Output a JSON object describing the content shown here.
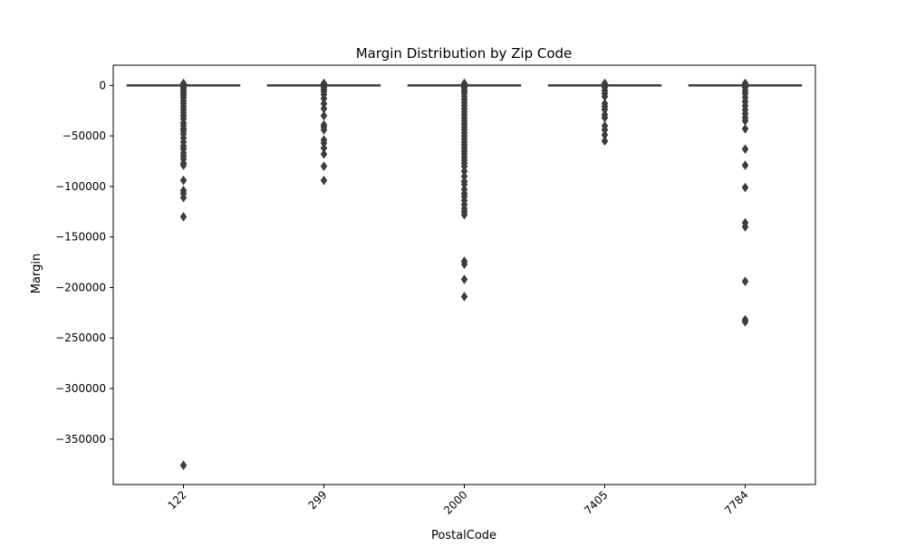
{
  "chart_data": {
    "type": "box",
    "title": "Margin Distribution by Zip Code",
    "xlabel": "PostalCode",
    "ylabel": "Margin",
    "categories": [
      "122",
      "299",
      "2000",
      "7405",
      "7784"
    ],
    "ylim": [
      -395000,
      20000
    ],
    "yticks": [
      0,
      -50000,
      -100000,
      -150000,
      -200000,
      -250000,
      -300000,
      -350000
    ],
    "ytick_labels": [
      "0",
      "−50000",
      "−100000",
      "−150000",
      "−200000",
      "−250000",
      "−300000",
      "−350000"
    ],
    "box_color": "#3d3d3d",
    "boxes": [
      {
        "category": "122",
        "q1": 0,
        "median": 0,
        "q3": 0,
        "whisker_low": 0,
        "whisker_high": 0,
        "outliers": [
          2000,
          1000,
          -2000,
          -4000,
          -6000,
          -8000,
          -10000,
          -12000,
          -15000,
          -18000,
          -21000,
          -24000,
          -27000,
          -30000,
          -33000,
          -37000,
          -40000,
          -43000,
          -45000,
          -48000,
          -52000,
          -56000,
          -60000,
          -63000,
          -67000,
          -70000,
          -73000,
          -77000,
          -79000,
          -94000,
          -104000,
          -107000,
          -111000,
          -130000,
          -376000
        ]
      },
      {
        "category": "299",
        "q1": 0,
        "median": 0,
        "q3": 0,
        "whisker_low": 0,
        "whisker_high": 0,
        "outliers": [
          2000,
          1000,
          -2000,
          -4000,
          -6000,
          -9000,
          -13000,
          -18000,
          -23000,
          -30000,
          -39000,
          -41000,
          -44000,
          -54000,
          -57000,
          -62000,
          -68000,
          -80000,
          -94000
        ]
      },
      {
        "category": "2000",
        "q1": 0,
        "median": 0,
        "q3": 0,
        "whisker_low": 0,
        "whisker_high": 0,
        "outliers": [
          2000,
          1000,
          -2000,
          -4000,
          -6000,
          -8000,
          -11000,
          -14000,
          -17000,
          -20000,
          -23000,
          -26000,
          -29000,
          -32000,
          -35000,
          -38000,
          -41000,
          -44000,
          -47000,
          -50000,
          -53000,
          -56000,
          -59000,
          -62000,
          -65000,
          -68000,
          -71000,
          -74000,
          -77000,
          -80000,
          -85000,
          -90000,
          -95000,
          -98000,
          -103000,
          -107000,
          -110000,
          -114000,
          -118000,
          -122000,
          -125000,
          -128000,
          -174000,
          -177000,
          -192000,
          -209000
        ]
      },
      {
        "category": "7405",
        "q1": 0,
        "median": 0,
        "q3": 0,
        "whisker_low": 0,
        "whisker_high": 0,
        "outliers": [
          2000,
          1000,
          -2000,
          -5000,
          -8000,
          -11000,
          -18000,
          -21000,
          -24000,
          -29000,
          -32000,
          -40000,
          -44000,
          -49000,
          -55000
        ]
      },
      {
        "category": "7784",
        "q1": 0,
        "median": 0,
        "q3": 0,
        "whisker_low": 0,
        "whisker_high": 0,
        "outliers": [
          2000,
          1000,
          -2000,
          -5000,
          -8000,
          -12000,
          -16000,
          -20000,
          -24000,
          -28000,
          -32000,
          -35000,
          -43000,
          -63000,
          -79000,
          -101000,
          -136000,
          -140000,
          -194000,
          -232000,
          -234000
        ]
      }
    ]
  }
}
